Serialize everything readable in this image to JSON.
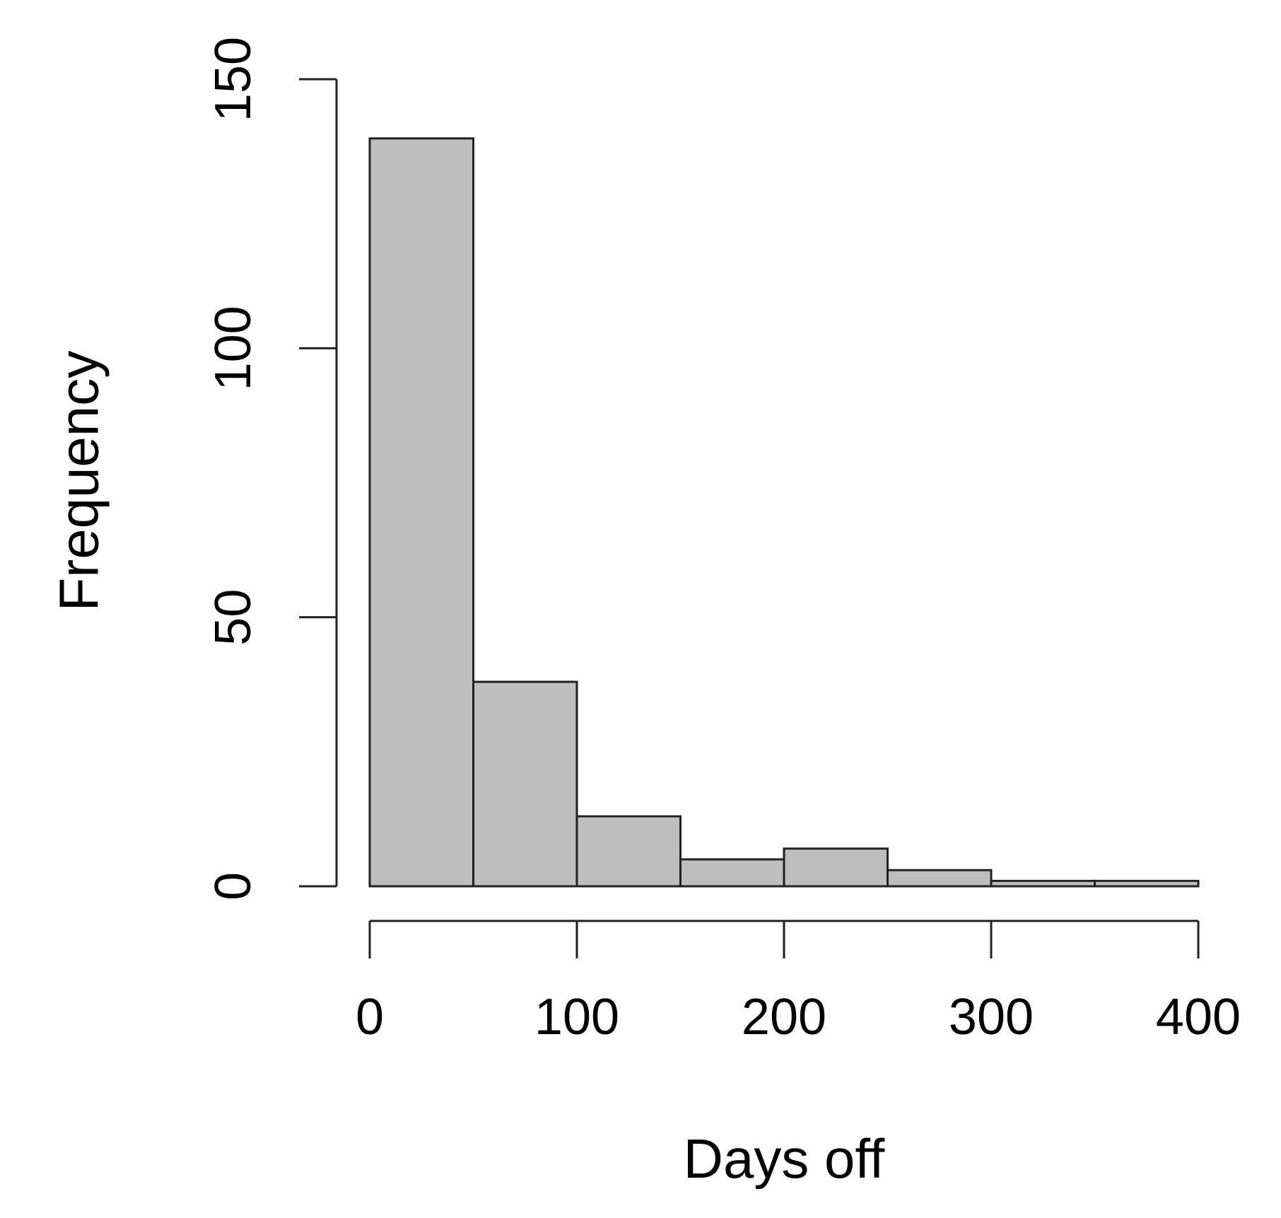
{
  "chart_data": {
    "type": "bar",
    "title": "",
    "xlabel": "Days off",
    "ylabel": "Frequency",
    "bin_edges": [
      0,
      50,
      100,
      150,
      200,
      250,
      300,
      350,
      400
    ],
    "values": [
      139,
      38,
      13,
      5,
      7,
      3,
      1,
      1
    ],
    "xlim": [
      0,
      400
    ],
    "ylim": [
      0,
      150
    ],
    "xticks": [
      0,
      100,
      200,
      300,
      400
    ],
    "yticks": [
      0,
      50,
      100,
      150
    ],
    "xtick_labels": [
      "0",
      "100",
      "200",
      "300",
      "400"
    ],
    "ytick_labels": [
      "0",
      "50",
      "100",
      "150"
    ],
    "grid": false,
    "legend": "none",
    "colors": {
      "bar_fill": "#bebebe",
      "bar_stroke": "#222222",
      "axis": "#222222",
      "text": "#000000",
      "background": "#ffffff"
    }
  }
}
